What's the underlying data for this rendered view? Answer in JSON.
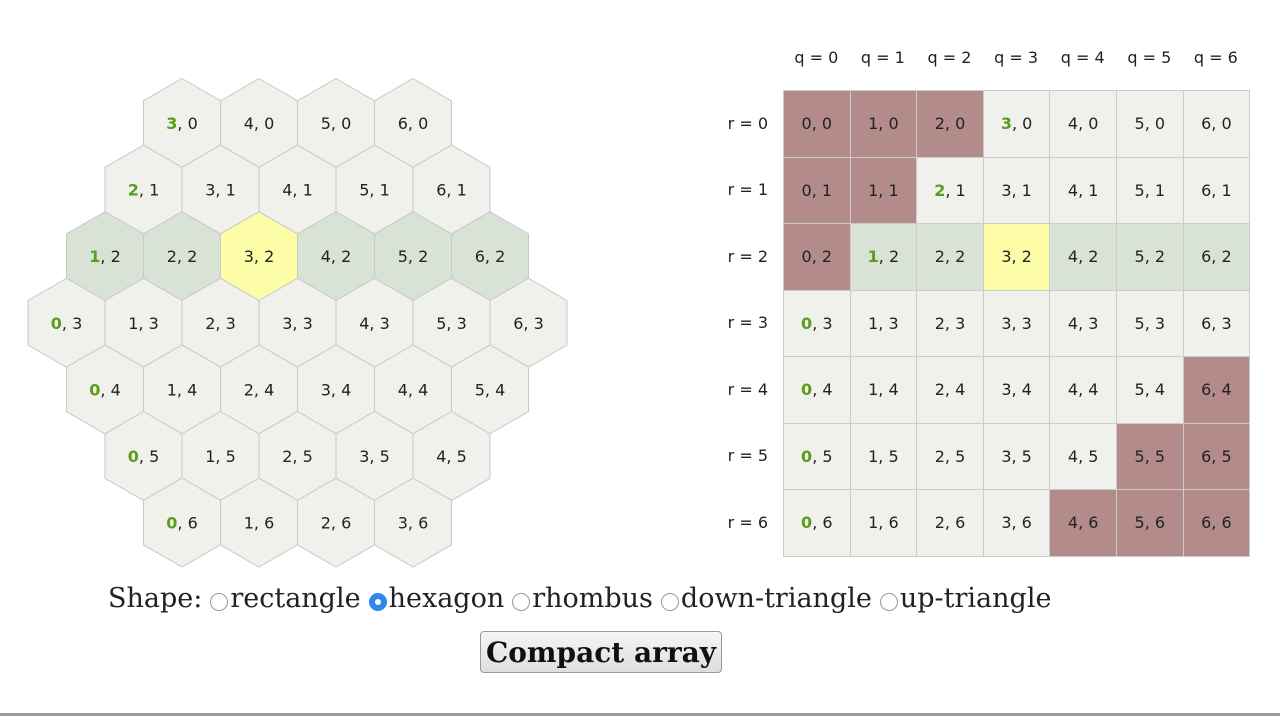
{
  "grid": {
    "accent_color": "#5a9e1e",
    "cell_fill": "#f0f1ec",
    "outside_fill": "#b38b8b",
    "columns": [
      "q = 0",
      "q = 1",
      "q = 2",
      "q = 3",
      "q = 4",
      "q = 5",
      "q = 6"
    ],
    "rows": [
      {
        "label": "r = 0",
        "cells": [
          {
            "text": [
              "0, 0"
            ],
            "fill": "#b38b8b"
          },
          {
            "text": [
              "1, 0"
            ],
            "fill": "#b38b8b"
          },
          {
            "text": [
              "2, 0"
            ],
            "fill": "#b38b8b"
          },
          {
            "text": [
              "3",
              ", 0"
            ]
          },
          {
            "text": [
              "4, 0"
            ]
          },
          {
            "text": [
              "5, 0"
            ]
          },
          {
            "text": [
              "6, 0"
            ]
          }
        ]
      },
      {
        "label": "r = 1",
        "cells": [
          {
            "text": [
              "0, 1"
            ],
            "fill": "#b38b8b"
          },
          {
            "text": [
              "1, 1"
            ],
            "fill": "#b38b8b"
          },
          {
            "text": [
              "2",
              ", 1"
            ]
          },
          {
            "text": [
              "3, 1"
            ]
          },
          {
            "text": [
              "4, 1"
            ]
          },
          {
            "text": [
              "5, 1"
            ]
          },
          {
            "text": [
              "6, 1"
            ]
          }
        ]
      },
      {
        "label": "r = 2",
        "cells": [
          {
            "text": [
              "0, 2"
            ],
            "fill": "#b38b8b"
          },
          {
            "text": [
              "1",
              ", 2"
            ],
            "fill": "#d9e3d5"
          },
          {
            "text": [
              "2, 2"
            ],
            "fill": "#d9e3d5"
          },
          {
            "text": [
              "3, 2"
            ],
            "fill": "#fdfda8"
          },
          {
            "text": [
              "4, 2"
            ],
            "fill": "#d9e3d5"
          },
          {
            "text": [
              "5, 2"
            ],
            "fill": "#d9e3d5"
          },
          {
            "text": [
              "6, 2"
            ],
            "fill": "#d9e3d5"
          }
        ]
      },
      {
        "label": "r = 3",
        "cells": [
          {
            "text": [
              "0",
              ", 3"
            ]
          },
          {
            "text": [
              "1, 3"
            ]
          },
          {
            "text": [
              "2, 3"
            ]
          },
          {
            "text": [
              "3, 3"
            ]
          },
          {
            "text": [
              "4, 3"
            ]
          },
          {
            "text": [
              "5, 3"
            ]
          },
          {
            "text": [
              "6, 3"
            ]
          }
        ]
      },
      {
        "label": "r = 4",
        "cells": [
          {
            "text": [
              "0",
              ", 4"
            ]
          },
          {
            "text": [
              "1, 4"
            ]
          },
          {
            "text": [
              "2, 4"
            ]
          },
          {
            "text": [
              "3, 4"
            ]
          },
          {
            "text": [
              "4, 4"
            ]
          },
          {
            "text": [
              "5, 4"
            ]
          },
          {
            "text": [
              "6, 4"
            ],
            "fill": "#b38b8b"
          }
        ]
      },
      {
        "label": "r = 5",
        "cells": [
          {
            "text": [
              "0",
              ", 5"
            ]
          },
          {
            "text": [
              "1, 5"
            ]
          },
          {
            "text": [
              "2, 5"
            ]
          },
          {
            "text": [
              "3, 5"
            ]
          },
          {
            "text": [
              "4, 5"
            ]
          },
          {
            "text": [
              "5, 5"
            ],
            "fill": "#b38b8b"
          },
          {
            "text": [
              "6, 5"
            ],
            "fill": "#b38b8b"
          }
        ]
      },
      {
        "label": "r = 6",
        "cells": [
          {
            "text": [
              "0",
              ", 6"
            ]
          },
          {
            "text": [
              "1, 6"
            ]
          },
          {
            "text": [
              "2, 6"
            ]
          },
          {
            "text": [
              "3, 6"
            ]
          },
          {
            "text": [
              "4, 6"
            ],
            "fill": "#b38b8b"
          },
          {
            "text": [
              "5, 6"
            ],
            "fill": "#b38b8b"
          },
          {
            "text": [
              "6, 6"
            ],
            "fill": "#b38b8b"
          }
        ]
      }
    ]
  },
  "controls": {
    "shape_label": "Shape:",
    "shapes": [
      {
        "label": "rectangle",
        "checked": false
      },
      {
        "label": "hexagon",
        "checked": true
      },
      {
        "label": "rhombus",
        "checked": false
      },
      {
        "label": "down-triangle",
        "checked": false
      },
      {
        "label": "up-triangle",
        "checked": false
      }
    ],
    "button": "Compact array"
  }
}
